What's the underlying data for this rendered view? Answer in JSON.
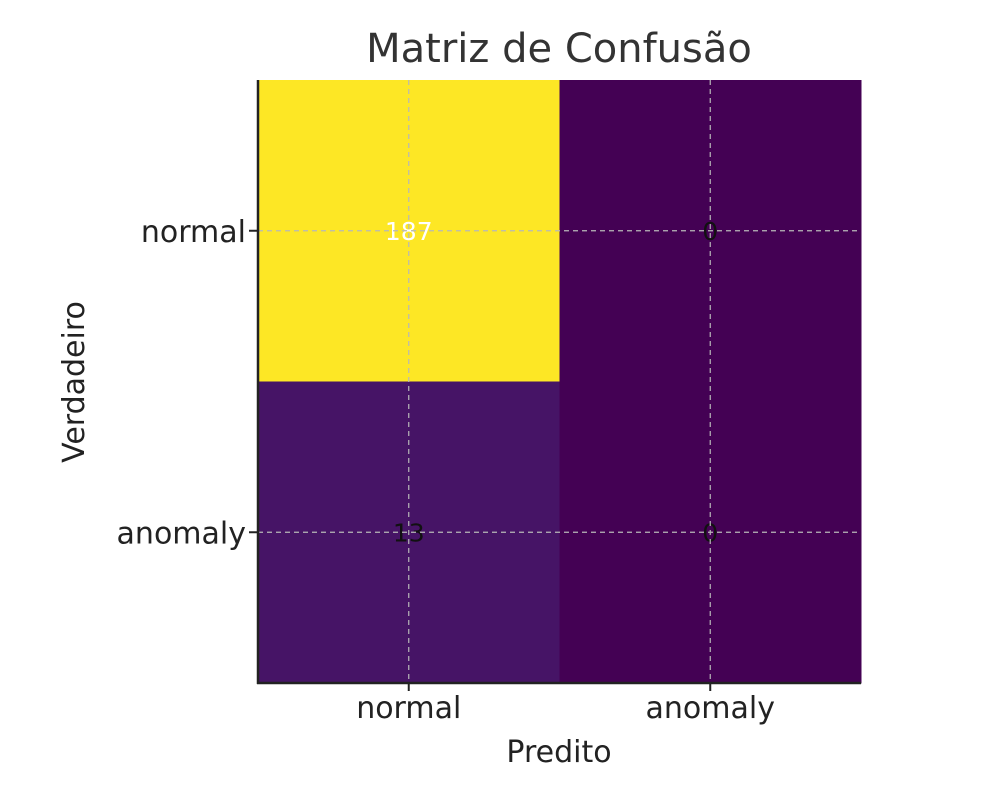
{
  "chart_data": {
    "type": "heatmap",
    "title": "Matriz de Confusão",
    "xlabel": "Predito",
    "ylabel": "Verdadeiro",
    "x_categories": [
      "normal",
      "anomaly"
    ],
    "y_categories": [
      "normal",
      "anomaly"
    ],
    "values": [
      [
        187,
        0
      ],
      [
        13,
        0
      ]
    ],
    "colormap": "viridis",
    "color_low": "#440154",
    "color_high": "#fde725",
    "grid": true
  }
}
